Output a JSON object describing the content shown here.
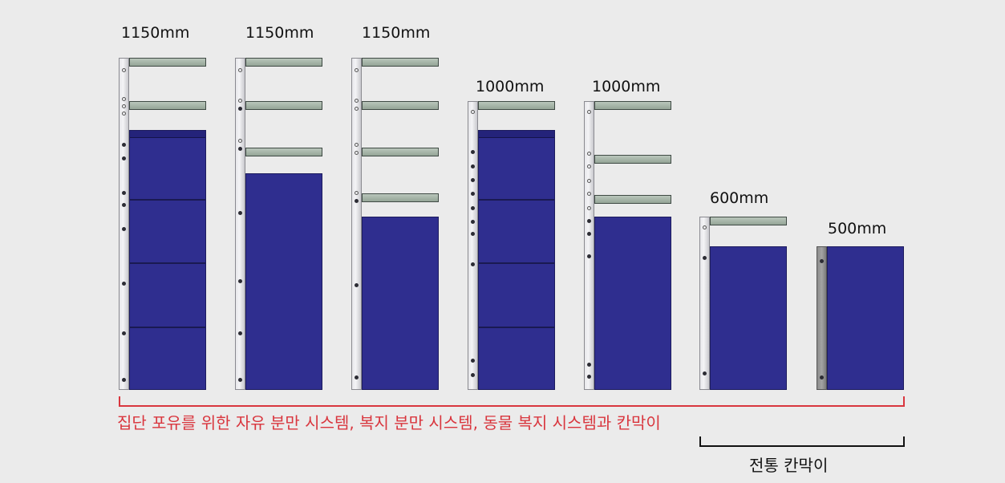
{
  "units": [
    {
      "height_label": "1150mm",
      "system": "individual"
    },
    {
      "height_label": "1150mm",
      "system": "individual"
    },
    {
      "height_label": "1150mm",
      "system": "individual"
    },
    {
      "height_label": "1000mm",
      "system": "individual"
    },
    {
      "height_label": "1000mm",
      "system": "individual"
    },
    {
      "height_label": "600mm",
      "system": "traditional"
    },
    {
      "height_label": "500mm",
      "system": "traditional"
    }
  ],
  "group_label": "집단 포유를 위한 자유 분만 시스템, 복지 분만 시스템, 동물 복지 시스템과 칸막이",
  "traditional_label": "전통 칸막이",
  "colors": {
    "panel": "#2f2e8f",
    "rail": "#a6b4a8",
    "bracket_group": "#d9363e",
    "bracket_traditional": "#111111"
  }
}
